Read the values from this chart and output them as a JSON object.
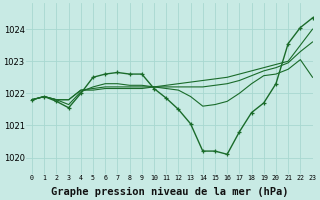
{
  "background_color": "#c8eae4",
  "grid_color": "#a8d8d0",
  "line_color": "#1a6b2a",
  "xlabel": "Graphe pression niveau de la mer (hPa)",
  "xlabel_fontsize": 7.5,
  "xlim": [
    -0.5,
    23
  ],
  "ylim": [
    1019.5,
    1024.8
  ],
  "yticks": [
    1020,
    1021,
    1022,
    1023,
    1024
  ],
  "xticks": [
    0,
    1,
    2,
    3,
    4,
    5,
    6,
    7,
    8,
    9,
    10,
    11,
    12,
    13,
    14,
    15,
    16,
    17,
    18,
    19,
    20,
    21,
    22,
    23
  ],
  "series": [
    {
      "y": [
        1021.8,
        1021.9,
        1021.8,
        1021.8,
        1022.1,
        1022.1,
        1022.15,
        1022.15,
        1022.15,
        1022.15,
        1022.2,
        1022.25,
        1022.3,
        1022.35,
        1022.4,
        1022.45,
        1022.5,
        1022.6,
        1022.7,
        1022.8,
        1022.9,
        1023.0,
        1023.5,
        1024.0
      ],
      "has_markers": false,
      "linewidth": 0.8,
      "linestyle": "-"
    },
    {
      "y": [
        1021.8,
        1021.9,
        1021.8,
        1021.8,
        1022.1,
        1022.15,
        1022.2,
        1022.2,
        1022.2,
        1022.2,
        1022.2,
        1022.2,
        1022.2,
        1022.2,
        1022.2,
        1022.25,
        1022.3,
        1022.4,
        1022.55,
        1022.7,
        1022.8,
        1022.95,
        1023.3,
        1023.6
      ],
      "has_markers": false,
      "linewidth": 0.8,
      "linestyle": "-"
    },
    {
      "y": [
        1021.8,
        1021.9,
        1021.8,
        1021.65,
        1022.05,
        1022.2,
        1022.3,
        1022.3,
        1022.25,
        1022.25,
        1022.2,
        1022.15,
        1022.1,
        1021.9,
        1021.6,
        1021.65,
        1021.75,
        1022.0,
        1022.3,
        1022.55,
        1022.6,
        1022.75,
        1023.05,
        1022.5
      ],
      "has_markers": false,
      "linewidth": 0.8,
      "linestyle": "-"
    },
    {
      "y": [
        1021.8,
        1021.9,
        1021.75,
        1021.55,
        1022.0,
        1022.5,
        1022.6,
        1022.65,
        1022.6,
        1022.6,
        1022.15,
        1021.85,
        1021.5,
        1021.05,
        1020.2,
        1020.2,
        1020.1,
        1020.8,
        1021.4,
        1021.7,
        1022.3,
        1023.55,
        1024.05,
        1024.35
      ],
      "has_markers": true,
      "linewidth": 1.0,
      "linestyle": "-"
    }
  ]
}
